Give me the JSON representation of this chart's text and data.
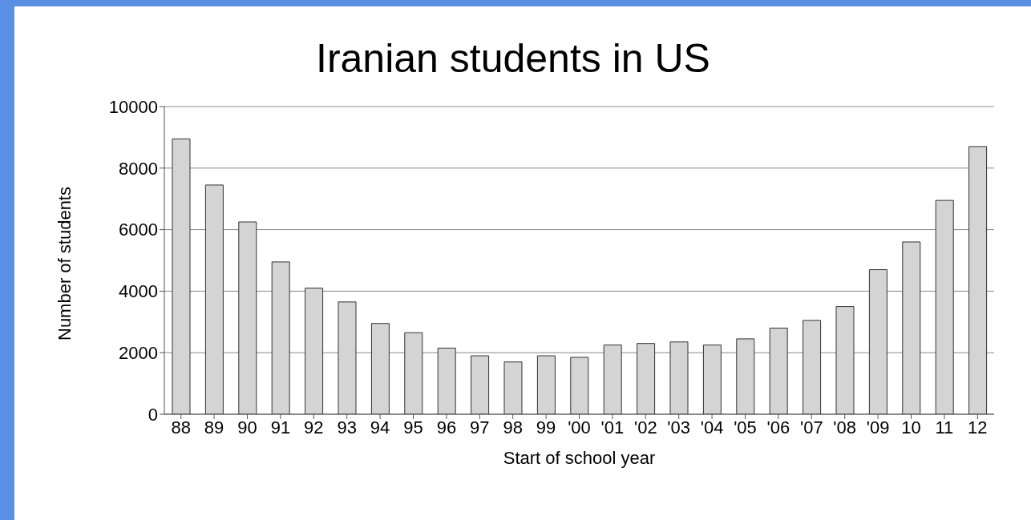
{
  "chart_data": {
    "type": "bar",
    "title": "Iranian students in US",
    "xlabel": "Start of school year",
    "ylabel": "Number of students",
    "categories": [
      "88",
      "89",
      "90",
      "91",
      "92",
      "93",
      "94",
      "95",
      "96",
      "97",
      "98",
      "99",
      "'00",
      "'01",
      "'02",
      "'03",
      "'04",
      "'05",
      "'06",
      "'07",
      "'08",
      "'09",
      "10",
      "11",
      "12"
    ],
    "values": [
      8950,
      7450,
      6250,
      4950,
      4100,
      3650,
      2950,
      2650,
      2150,
      1900,
      1700,
      1900,
      1850,
      2250,
      2300,
      2350,
      2250,
      2450,
      2800,
      3050,
      3500,
      4700,
      5600,
      6950,
      8700
    ],
    "color": "#d4d4d4",
    "ylim": [
      0,
      10000
    ],
    "yticks": [
      0,
      2000,
      4000,
      6000,
      8000,
      10000
    ],
    "grid": "y"
  }
}
